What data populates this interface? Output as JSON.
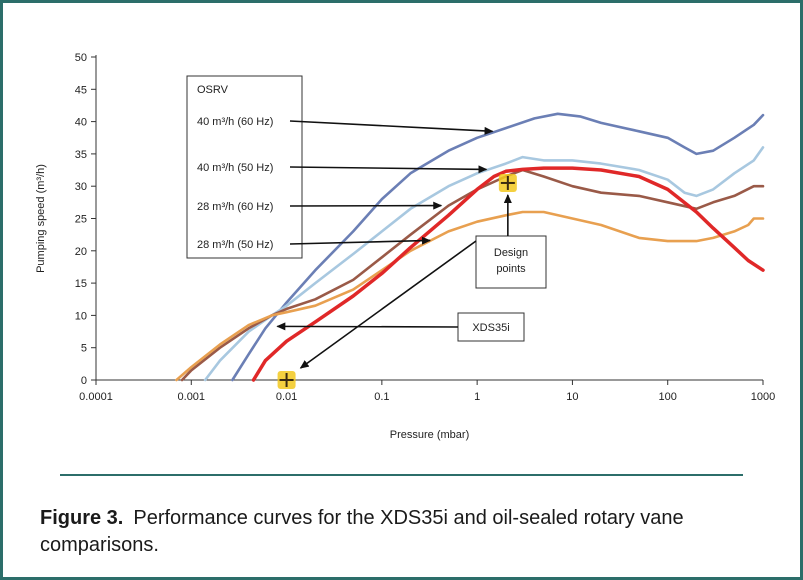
{
  "chart_data": {
    "type": "line",
    "title": "",
    "xlabel": "Pressure (mbar)",
    "ylabel": "Pumping speed (m³/h)",
    "x_scale": "log",
    "xlim": [
      0.0001,
      1000
    ],
    "ylim": [
      0,
      50
    ],
    "x_ticks": [
      "0.0001",
      "0.001",
      "0.01",
      "0.1",
      "1",
      "10",
      "100",
      "1000"
    ],
    "y_ticks": [
      "0",
      "5",
      "10",
      "15",
      "20",
      "25",
      "30",
      "35",
      "40",
      "45",
      "50"
    ],
    "grid": false,
    "legend_box": {
      "header": "OSRV",
      "entries": [
        {
          "label": "40 m³/h (60 Hz)",
          "series": "40 m³/h (60 Hz)"
        },
        {
          "label": "40 m³/h (50 Hz)",
          "series": "40 m³/h (50 Hz)"
        },
        {
          "label": "28 m³/h (60 Hz)",
          "series": "28 m³/h (60 Hz)"
        },
        {
          "label": "28 m³/h (50 Hz)",
          "series": "28 m³/h (50 Hz)"
        }
      ]
    },
    "series": [
      {
        "name": "40 m³/h (60 Hz)",
        "color": "#6b7fb5",
        "x": [
          0.0027,
          0.004,
          0.006,
          0.01,
          0.02,
          0.05,
          0.1,
          0.2,
          0.5,
          1,
          2,
          4,
          7,
          12,
          20,
          50,
          100,
          150,
          200,
          300,
          500,
          800,
          1000
        ],
        "y": [
          0,
          4,
          8,
          12,
          17,
          23,
          28,
          32,
          35.5,
          37.5,
          39,
          40.5,
          41.2,
          40.8,
          39.8,
          38.5,
          37.5,
          36,
          35,
          35.5,
          37.5,
          39.5,
          41
        ]
      },
      {
        "name": "40 m³/h (50 Hz)",
        "color": "#a8c8e0",
        "x": [
          0.0014,
          0.002,
          0.004,
          0.007,
          0.01,
          0.02,
          0.05,
          0.1,
          0.2,
          0.5,
          1,
          2,
          3,
          5,
          10,
          20,
          50,
          100,
          150,
          200,
          300,
          500,
          800,
          1000
        ],
        "y": [
          0,
          3,
          7.5,
          10,
          11.5,
          15,
          19.5,
          23,
          26.5,
          30,
          32,
          33.5,
          34.5,
          34,
          34,
          33.5,
          32.5,
          31,
          29,
          28.5,
          29.5,
          32,
          34,
          36
        ]
      },
      {
        "name": "28 m³/h (60 Hz)",
        "color": "#9a5a48",
        "x": [
          0.0008,
          0.001,
          0.002,
          0.004,
          0.007,
          0.01,
          0.02,
          0.05,
          0.1,
          0.2,
          0.5,
          1,
          2,
          3,
          5,
          10,
          20,
          50,
          100,
          200,
          300,
          500,
          800,
          1000
        ],
        "y": [
          0,
          1.5,
          5,
          8,
          10,
          11,
          12.5,
          15.5,
          19,
          22.5,
          27,
          29.5,
          31.5,
          32.5,
          31.5,
          30,
          29,
          28.5,
          27.5,
          26.5,
          27.5,
          28.5,
          30,
          30
        ]
      },
      {
        "name": "28 m³/h (50 Hz)",
        "color": "#e8a050",
        "x": [
          0.0007,
          0.001,
          0.002,
          0.004,
          0.007,
          0.01,
          0.02,
          0.05,
          0.1,
          0.2,
          0.5,
          1,
          2,
          3,
          5,
          10,
          20,
          50,
          100,
          200,
          300,
          500,
          700,
          800,
          1000
        ],
        "y": [
          0,
          2,
          5.5,
          8.5,
          10,
          10.5,
          11.5,
          14,
          17,
          20,
          23,
          24.5,
          25.5,
          26,
          26,
          25,
          24,
          22,
          21.5,
          21.5,
          22,
          23,
          24,
          25,
          25
        ]
      },
      {
        "name": "XDS35i",
        "color": "#e02828",
        "x": [
          0.0045,
          0.006,
          0.01,
          0.02,
          0.05,
          0.1,
          0.2,
          0.5,
          1,
          1.5,
          2,
          3,
          5,
          10,
          20,
          50,
          100,
          200,
          300,
          500,
          700,
          1000
        ],
        "y": [
          0,
          3,
          6,
          9,
          13,
          16.5,
          20.5,
          25.5,
          29.5,
          31.5,
          32.3,
          32.6,
          32.8,
          32.8,
          32.5,
          31.5,
          29.5,
          26,
          23.5,
          20.5,
          18.5,
          17
        ]
      }
    ],
    "design_points": [
      {
        "x": 0.01,
        "y": 0
      },
      {
        "x": 2.1,
        "y": 30.5
      }
    ],
    "annotations": [
      {
        "text": "Design\npoints"
      },
      {
        "text": "XDS35i"
      }
    ]
  },
  "caption": {
    "label": "Figure 3.",
    "text": "Performance curves for the XDS35i and oil-sealed rotary vane comparisons."
  }
}
